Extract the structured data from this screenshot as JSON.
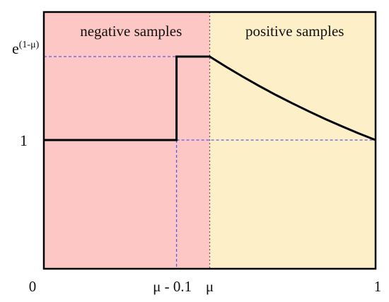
{
  "chart_data": {
    "type": "line",
    "xlim": [
      0,
      1
    ],
    "mu": 0.5,
    "delta": 0.1,
    "x_ticks": [
      {
        "value": 0,
        "label": "0"
      },
      {
        "value": 0.4,
        "label": "μ - 0.1"
      },
      {
        "value": 0.5,
        "label": "μ"
      },
      {
        "value": 1,
        "label": "1"
      }
    ],
    "y_ticks": [
      {
        "label": "e",
        "sup": "(1-μ)"
      },
      {
        "label": "1"
      }
    ],
    "regions": [
      {
        "label": "negative samples",
        "from": 0,
        "to": 0.5,
        "color": "#fcc7c5"
      },
      {
        "label": "positive samples",
        "from": 0.5,
        "to": 1,
        "color": "#fdefc8"
      }
    ],
    "series": [
      {
        "color": "#000000",
        "points": [
          {
            "x": 0,
            "y": 1
          },
          {
            "x": 0.4,
            "y": 1
          },
          {
            "x": 0.4,
            "y": 1.6487
          },
          {
            "x": 0.5,
            "y": 1.6487
          },
          {
            "x": 0.55,
            "y": 1.5683
          },
          {
            "x": 0.6,
            "y": 1.4918
          },
          {
            "x": 0.65,
            "y": 1.4191
          },
          {
            "x": 0.7,
            "y": 1.3499
          },
          {
            "x": 0.75,
            "y": 1.284
          },
          {
            "x": 0.8,
            "y": 1.2214
          },
          {
            "x": 0.85,
            "y": 1.1618
          },
          {
            "x": 0.9,
            "y": 1.1052
          },
          {
            "x": 0.95,
            "y": 1.0513
          },
          {
            "x": 1,
            "y": 1.0
          }
        ]
      }
    ],
    "guides_color": "#5b5bf0"
  }
}
